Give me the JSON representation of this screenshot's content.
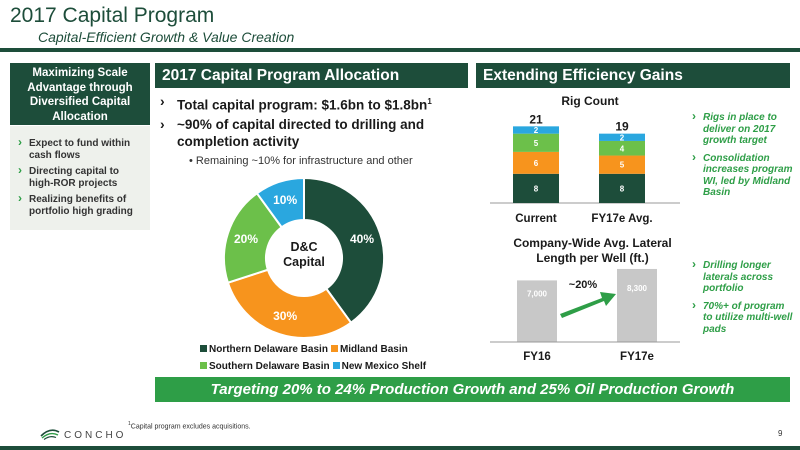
{
  "header": {
    "title": "2017 Capital Program",
    "subtitle": "Capital-Efficient Growth & Value Creation"
  },
  "sidebar": {
    "heading": "Maximizing Scale Advantage through Diversified Capital Allocation",
    "items": [
      "Expect to fund within cash flows",
      "Directing capital to high-ROR projects",
      "Realizing benefits of portfolio high grading"
    ]
  },
  "allocation": {
    "heading": "2017 Capital Program Allocation",
    "bullets": [
      "Total capital program: $1.6bn to $1.8bn",
      "~90% of capital directed to drilling and completion activity"
    ],
    "footnote_marker": "1",
    "sub_bullet": "Remaining ~10% for infrastructure and other",
    "donut_center": "D&C Capital"
  },
  "efficiency": {
    "heading": "Extending Efficiency Gains",
    "rig_bullets": [
      "Rigs in place to deliver on 2017 growth target",
      "Consolidation increases program WI, led by Midland Basin"
    ],
    "lateral_bullets": [
      "Drilling longer laterals across portfolio",
      "70%+ of program to utilize multi-well pads"
    ],
    "lateral_growth_label": "~20%"
  },
  "banner": "Targeting 20% to 24% Production Growth and 25% Oil Production Growth",
  "footer": {
    "footnote": "Capital program excludes acquisitions.",
    "footnote_marker": "1",
    "logo_text": "CONCHO",
    "page_number": "9"
  },
  "colors": {
    "dark_green": "#1d4d3a",
    "orange": "#f7941d",
    "light_green": "#6cc04a",
    "blue": "#2aa7df",
    "gray_bar": "#c8c8c8",
    "accent_green": "#2e9e47"
  },
  "chart_data": [
    {
      "type": "pie",
      "donut": true,
      "categories": [
        "Northern Delaware Basin",
        "Midland Basin",
        "Southern Delaware Basin",
        "New Mexico Shelf"
      ],
      "values": [
        40,
        30,
        20,
        10
      ],
      "labels": [
        "40%",
        "30%",
        "20%",
        "10%"
      ],
      "colors": [
        "#1d4d3a",
        "#f7941d",
        "#6cc04a",
        "#2aa7df"
      ],
      "legend": "bottom"
    },
    {
      "type": "bar",
      "stacked": true,
      "title": "Rig Count",
      "categories": [
        "Current",
        "FY17e Avg."
      ],
      "totals": [
        21,
        19
      ],
      "series": [
        {
          "values": [
            8,
            8
          ],
          "color": "#1d4d3a"
        },
        {
          "values": [
            6,
            5
          ],
          "color": "#f7941d"
        },
        {
          "values": [
            5,
            4
          ],
          "color": "#6cc04a"
        },
        {
          "values": [
            2,
            2
          ],
          "color": "#2aa7df"
        }
      ],
      "ylim": [
        0,
        21
      ]
    },
    {
      "type": "bar",
      "title": "Company-Wide Avg. Lateral Length per Well (ft.)",
      "categories": [
        "FY16",
        "FY17e"
      ],
      "values": [
        7000,
        8300
      ],
      "data_labels": [
        "7,000",
        "8,300"
      ],
      "ylim": [
        0,
        9500
      ]
    }
  ]
}
